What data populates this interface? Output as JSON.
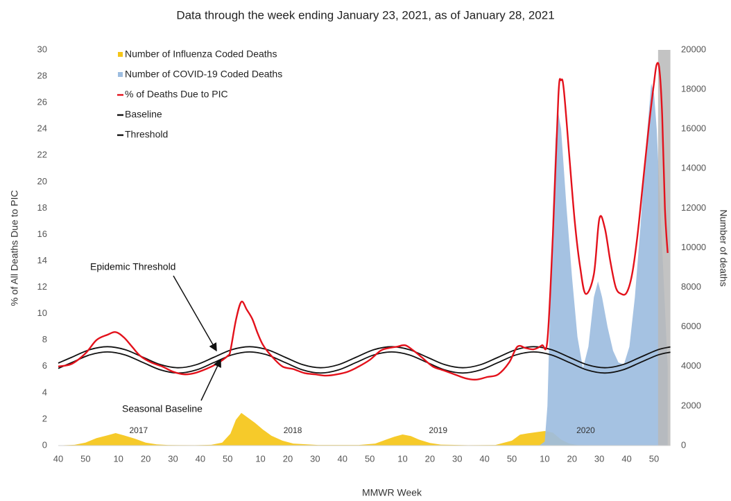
{
  "chart_data": {
    "type": "line",
    "title": "Data through the week ending January 23, 2021, as of January 28, 2021",
    "xlabel": "MMWR Week",
    "ylabel": "% of All Deaths Due to PIC",
    "y2label": "Number of deaths",
    "xlim": [
      0,
      224
    ],
    "xticks": [
      {
        "value": 0,
        "label": "40"
      },
      {
        "value": 10,
        "label": "50"
      },
      {
        "value": 22,
        "label": "10"
      },
      {
        "value": 32,
        "label": "20"
      },
      {
        "value": 42,
        "label": "30"
      },
      {
        "value": 52,
        "label": "40"
      },
      {
        "value": 62,
        "label": "50"
      },
      {
        "value": 74,
        "label": "10"
      },
      {
        "value": 84,
        "label": "20"
      },
      {
        "value": 94,
        "label": "30"
      },
      {
        "value": 104,
        "label": "40"
      },
      {
        "value": 114,
        "label": "50"
      },
      {
        "value": 126,
        "label": "10"
      },
      {
        "value": 136,
        "label": "20"
      },
      {
        "value": 146,
        "label": "30"
      },
      {
        "value": 156,
        "label": "40"
      },
      {
        "value": 166,
        "label": "50"
      },
      {
        "value": 178,
        "label": "10"
      },
      {
        "value": 188,
        "label": "20"
      },
      {
        "value": 198,
        "label": "30"
      },
      {
        "value": 208,
        "label": "40"
      },
      {
        "value": 218,
        "label": "50"
      }
    ],
    "ylim": [
      0,
      30
    ],
    "yticks": [
      0,
      2,
      4,
      6,
      8,
      10,
      12,
      14,
      16,
      18,
      20,
      22,
      24,
      26,
      28,
      30
    ],
    "y2lim": [
      0,
      20000
    ],
    "y2ticks": [
      0,
      2000,
      4000,
      6000,
      8000,
      10000,
      12000,
      14000,
      16000,
      18000,
      20000
    ],
    "series": [
      {
        "name": "Number of Influenza Coded Deaths",
        "color": "#f5c518",
        "type": "area",
        "axis": "y2",
        "x": [
          0,
          6,
          10,
          14,
          18,
          21,
          24,
          28,
          32,
          36,
          40,
          50,
          56,
          60,
          63,
          65,
          67,
          69,
          72,
          75,
          78,
          82,
          86,
          95,
          110,
          116,
          120,
          123,
          126,
          129,
          132,
          136,
          140,
          150,
          160,
          166,
          169,
          172,
          175,
          178,
          181,
          184,
          187,
          190,
          200,
          224
        ],
        "values": [
          10,
          40,
          150,
          380,
          520,
          630,
          520,
          350,
          150,
          60,
          30,
          20,
          40,
          150,
          600,
          1300,
          1650,
          1450,
          1150,
          800,
          500,
          250,
          100,
          30,
          30,
          100,
          300,
          450,
          560,
          480,
          300,
          130,
          50,
          20,
          30,
          250,
          550,
          620,
          680,
          735,
          650,
          300,
          100,
          30,
          10,
          10
        ]
      },
      {
        "name": "Number of COVID-19 Coded Deaths",
        "color": "#9dbde0",
        "type": "area",
        "axis": "y2",
        "x": [
          176,
          178,
          179,
          180,
          181,
          182,
          183,
          184,
          186,
          188,
          190,
          192,
          194,
          196,
          197.5,
          199,
          201,
          203,
          205,
          207,
          209,
          211,
          213,
          215,
          217,
          218,
          219,
          220,
          221,
          222,
          223
        ],
        "values": [
          0,
          200,
          2000,
          7000,
          12000,
          15500,
          16800,
          16000,
          12000,
          8500,
          5500,
          3900,
          5000,
          7500,
          8300,
          7500,
          6000,
          4800,
          4200,
          4100,
          5000,
          7500,
          11000,
          15000,
          18300,
          17800,
          16000,
          13000,
          10000,
          7000,
          4000
        ]
      },
      {
        "name": "% of Deaths Due to PIC",
        "color": "#e3111b",
        "type": "line",
        "x": [
          0,
          5,
          10,
          14,
          18,
          21,
          24,
          27,
          30,
          34,
          38,
          42,
          46,
          50,
          54,
          58,
          62,
          63,
          65,
          67,
          69,
          71,
          73,
          75,
          78,
          82,
          86,
          90,
          94,
          98,
          102,
          106,
          110,
          114,
          118,
          121,
          124,
          127,
          130,
          133,
          137,
          141,
          145,
          149,
          153,
          157,
          161,
          165,
          168,
          171,
          174,
          177,
          179,
          181,
          183,
          184,
          185,
          187,
          189,
          191,
          193,
          196,
          198,
          200,
          202,
          204,
          206,
          208,
          210,
          212,
          214,
          216,
          218,
          219,
          220,
          221,
          222,
          223
        ],
        "values": [
          6,
          6.2,
          7,
          8,
          8.4,
          8.6,
          8.2,
          7.5,
          6.8,
          6.3,
          6,
          5.6,
          5.4,
          5.5,
          5.8,
          6.2,
          6.8,
          7.2,
          9.5,
          10.9,
          10.3,
          9.6,
          8.5,
          7.6,
          6.8,
          6,
          5.8,
          5.5,
          5.4,
          5.3,
          5.4,
          5.6,
          6,
          6.5,
          7.2,
          7.4,
          7.5,
          7.6,
          7.2,
          6.7,
          6,
          5.7,
          5.4,
          5.1,
          5,
          5.2,
          5.4,
          6.3,
          7.5,
          7.4,
          7.3,
          7.6,
          8,
          16,
          26.5,
          27.7,
          27,
          22,
          17,
          13.5,
          11.5,
          13,
          17.2,
          16.5,
          14,
          12,
          11.5,
          11.6,
          13,
          16,
          20,
          24,
          27.5,
          28.9,
          28.5,
          25,
          18,
          14.6
        ]
      },
      {
        "name": "Baseline",
        "color": "#111111",
        "type": "line",
        "x": [
          0,
          5,
          11.5,
          18,
          24.5,
          31,
          37.5,
          44,
          50.5,
          57,
          63.5,
          70,
          76.5,
          83,
          89.5,
          96,
          102.5,
          109,
          115.5,
          122,
          128.5,
          135,
          141.5,
          148,
          154.5,
          161,
          167.5,
          174,
          180.5,
          187,
          193.5,
          200,
          206.5,
          213,
          219.5,
          224
        ],
        "values": [
          5.85,
          6.3,
          6.87,
          7.1,
          6.87,
          6.3,
          5.73,
          5.5,
          5.73,
          6.3,
          6.87,
          7.1,
          6.87,
          6.3,
          5.73,
          5.5,
          5.73,
          6.3,
          6.87,
          7.1,
          6.87,
          6.3,
          5.73,
          5.5,
          5.73,
          6.3,
          6.87,
          7.1,
          6.87,
          6.3,
          5.73,
          5.5,
          5.73,
          6.3,
          6.87,
          7.08
        ]
      },
      {
        "name": "Threshold",
        "color": "#111111",
        "type": "line",
        "x": [
          0,
          5,
          11.5,
          18,
          24.5,
          31,
          37.5,
          44,
          50.5,
          57,
          63.5,
          70,
          76.5,
          83,
          89.5,
          96,
          102.5,
          109,
          115.5,
          122,
          128.5,
          135,
          141.5,
          148,
          154.5,
          161,
          167.5,
          174,
          180.5,
          187,
          193.5,
          200,
          206.5,
          213,
          219.5,
          224
        ],
        "values": [
          6.25,
          6.7,
          7.27,
          7.5,
          7.27,
          6.7,
          6.13,
          5.9,
          6.13,
          6.7,
          7.27,
          7.5,
          7.27,
          6.7,
          6.13,
          5.9,
          6.13,
          6.7,
          7.27,
          7.5,
          7.27,
          6.7,
          6.13,
          5.9,
          6.13,
          6.7,
          7.27,
          7.5,
          7.27,
          6.7,
          6.13,
          5.9,
          6.13,
          6.7,
          7.27,
          7.48
        ]
      }
    ],
    "annotations": [
      "Epidemic Threshold",
      "Seasonal Baseline"
    ],
    "year_labels": [
      "2017",
      "2018",
      "2019",
      "2020"
    ]
  }
}
